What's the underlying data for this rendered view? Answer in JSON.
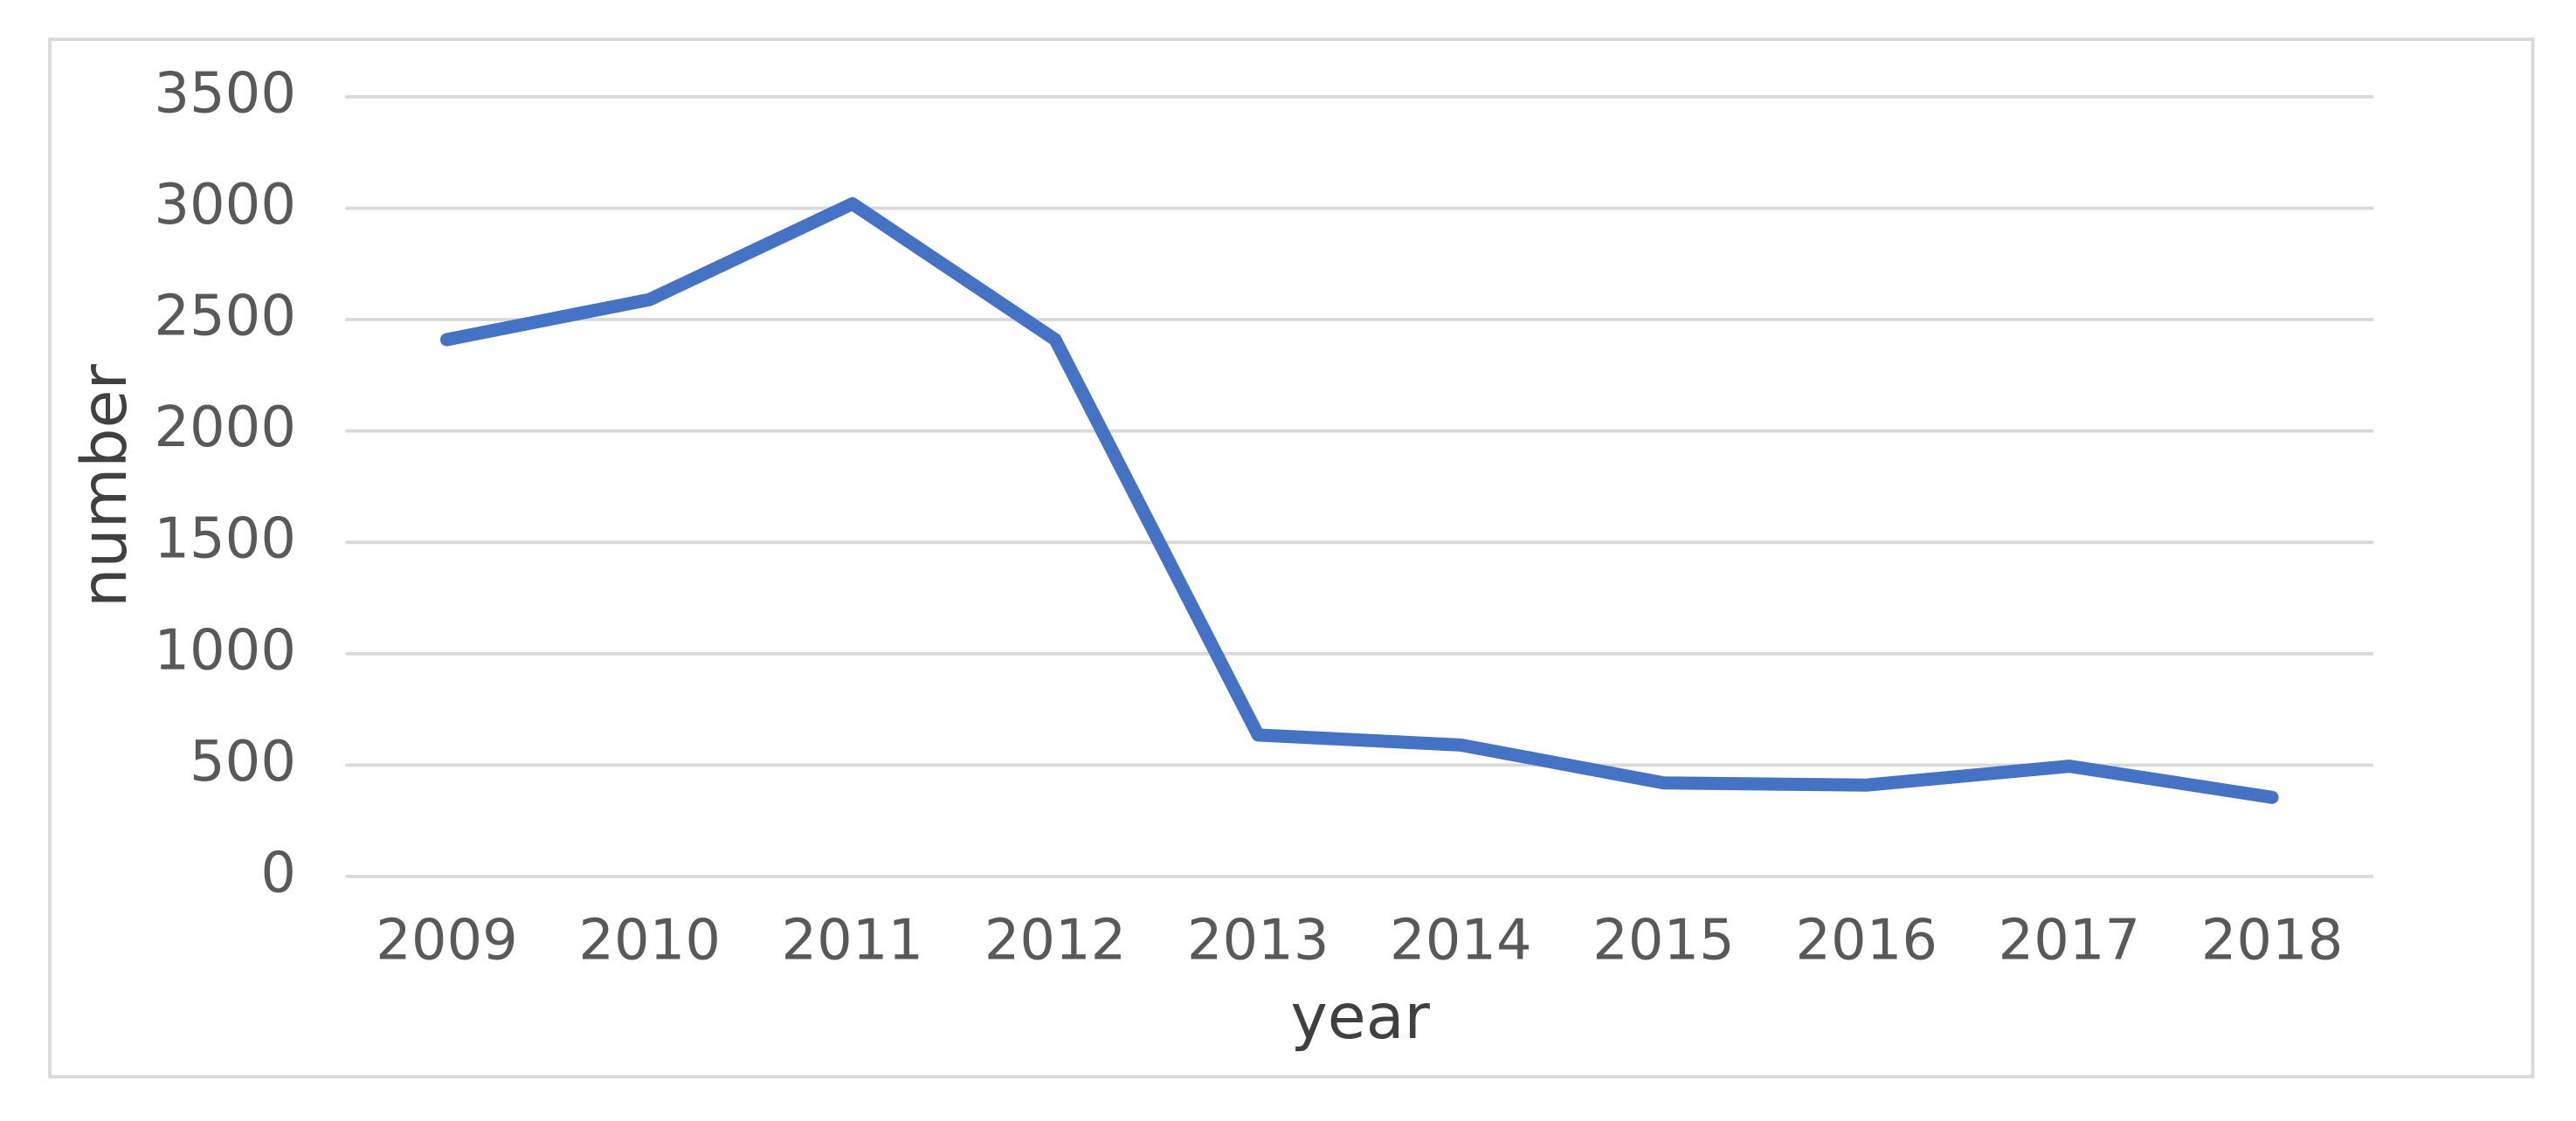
{
  "chart_data": {
    "type": "line",
    "x_label": "year",
    "y_label": "number",
    "categories": [
      "2009",
      "2010",
      "2011",
      "2012",
      "2013",
      "2014",
      "2015",
      "2016",
      "2017",
      "2018"
    ],
    "series": [
      {
        "name": "number",
        "color": "#4472c4",
        "values": [
          2410,
          2590,
          3020,
          2410,
          635,
          590,
          420,
          410,
          495,
          355
        ]
      }
    ],
    "ylim": [
      0,
      3500
    ],
    "yticks": [
      0,
      500,
      1000,
      1500,
      2000,
      2500,
      3000,
      3500
    ],
    "grid": true
  }
}
